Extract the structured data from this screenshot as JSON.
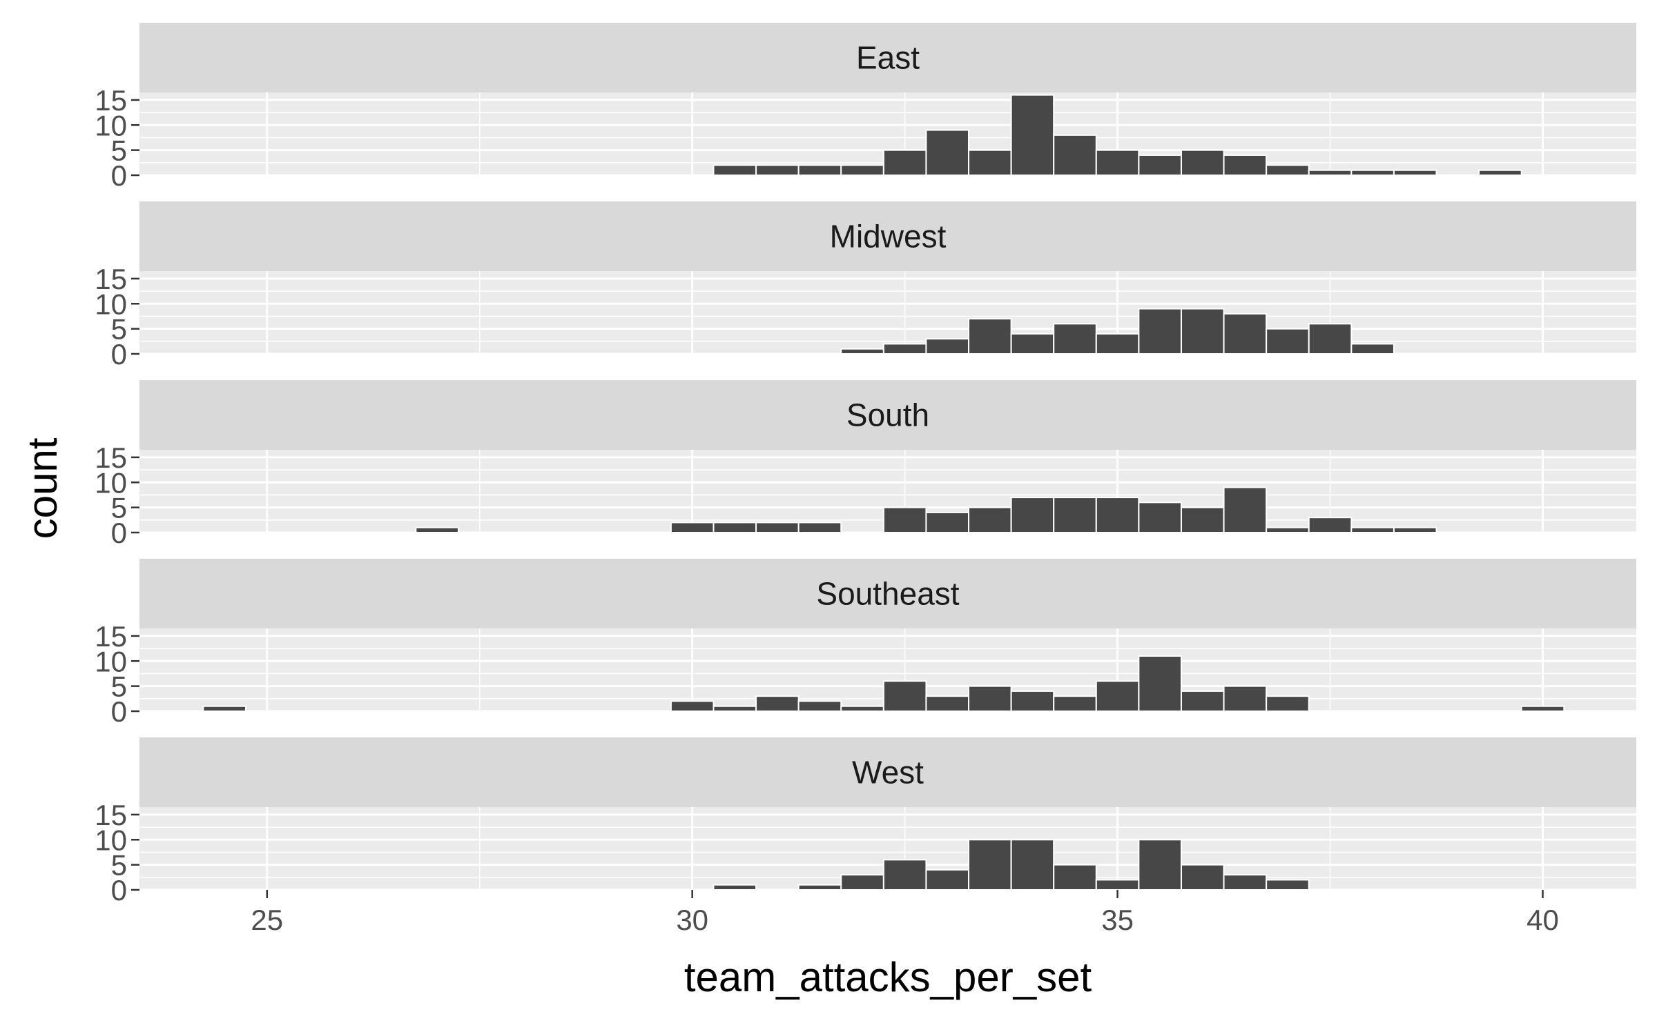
{
  "chart_data": {
    "type": "bar",
    "subtype": "faceted-histogram",
    "title": "",
    "xlabel": "team_attacks_per_set",
    "ylabel": "count",
    "xlim": [
      23.5,
      41.1
    ],
    "ylim": [
      0,
      16.5
    ],
    "x_ticks": [
      25,
      30,
      35,
      40
    ],
    "y_ticks": [
      0,
      5,
      10,
      15
    ],
    "grid": true,
    "bin_width": 0.5,
    "bin_centers": [
      24.5,
      25.0,
      25.5,
      26.0,
      26.5,
      27.0,
      27.5,
      28.0,
      28.5,
      29.0,
      29.5,
      30.0,
      30.5,
      31.0,
      31.5,
      32.0,
      32.5,
      33.0,
      33.5,
      34.0,
      34.5,
      35.0,
      35.5,
      36.0,
      36.5,
      37.0,
      37.5,
      38.0,
      38.5,
      39.0,
      39.5,
      40.0
    ],
    "series": [
      {
        "name": "East",
        "values": [
          0,
          0,
          0,
          0,
          0,
          0,
          0,
          0,
          0,
          0,
          0,
          0,
          2,
          2,
          2,
          2,
          5,
          9,
          5,
          16,
          8,
          5,
          4,
          5,
          4,
          2,
          1,
          1,
          1,
          0,
          1,
          0
        ]
      },
      {
        "name": "Midwest",
        "values": [
          0,
          0,
          0,
          0,
          0,
          0,
          0,
          0,
          0,
          0,
          0,
          0,
          0,
          0,
          0,
          1,
          2,
          3,
          7,
          4,
          6,
          4,
          9,
          9,
          8,
          5,
          6,
          2,
          0,
          0,
          0,
          0
        ]
      },
      {
        "name": "South",
        "values": [
          0,
          0,
          0,
          0,
          0,
          1,
          0,
          0,
          0,
          0,
          0,
          2,
          2,
          2,
          2,
          0,
          5,
          4,
          5,
          7,
          7,
          7,
          6,
          5,
          9,
          1,
          3,
          1,
          1,
          0,
          0,
          0
        ]
      },
      {
        "name": "Southeast",
        "values": [
          1,
          0,
          0,
          0,
          0,
          0,
          0,
          0,
          0,
          0,
          0,
          2,
          1,
          3,
          2,
          1,
          6,
          3,
          5,
          4,
          3,
          6,
          11,
          4,
          5,
          3,
          0,
          0,
          0,
          0,
          0,
          1
        ]
      },
      {
        "name": "West",
        "values": [
          0,
          0,
          0,
          0,
          0,
          0,
          0,
          0,
          0,
          0,
          0,
          0,
          1,
          0,
          1,
          3,
          6,
          4,
          10,
          10,
          5,
          2,
          10,
          5,
          3,
          2,
          0,
          0,
          0,
          0,
          0,
          0
        ]
      }
    ]
  },
  "colors": {
    "panel_background": "#ebebeb",
    "strip_background": "#d9d9d9",
    "grid": "#ffffff",
    "bar_fill": "#474747",
    "bar_outline": "#ffffff"
  }
}
